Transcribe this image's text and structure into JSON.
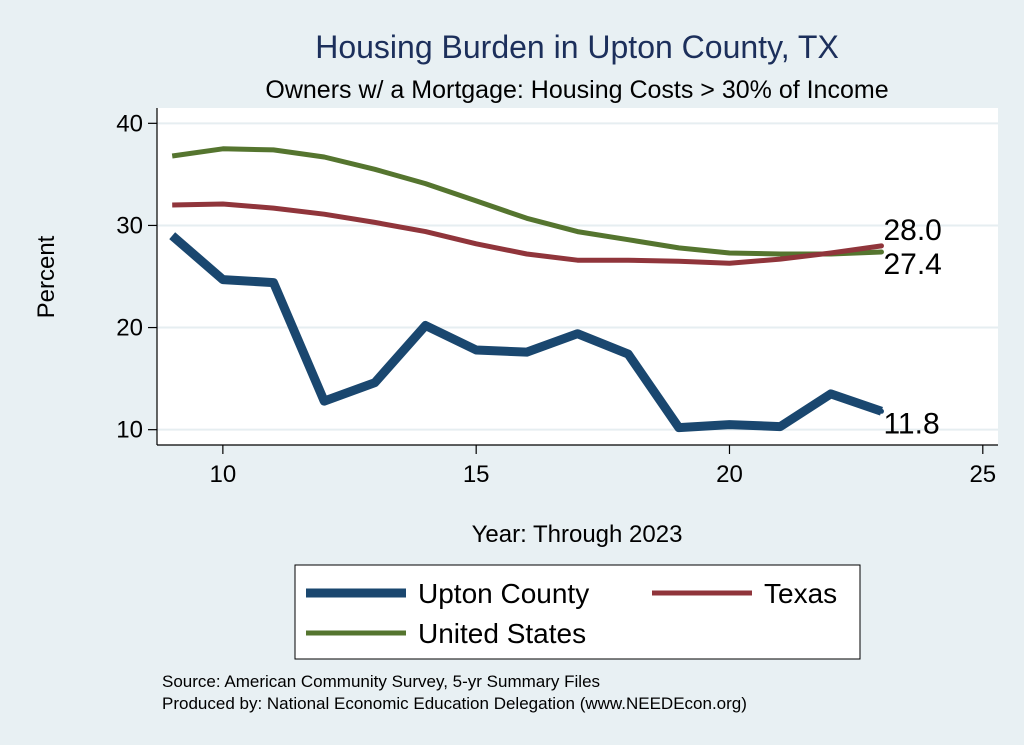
{
  "chart_data": {
    "type": "line",
    "title": "Housing Burden in Upton County, TX",
    "subtitle": "Owners w/ a Mortgage: Housing Costs > 30% of Income",
    "xlabel": "Year: Through 2023",
    "ylabel": "Percent",
    "xlim": [
      8.7,
      25.3
    ],
    "ylim": [
      8.5,
      41.5
    ],
    "xticks": [
      10,
      15,
      20,
      25
    ],
    "yticks": [
      10,
      20,
      30,
      40
    ],
    "grid": true,
    "legend_position": "bottom",
    "x": [
      9,
      10,
      11,
      12,
      13,
      14,
      15,
      16,
      17,
      18,
      19,
      20,
      21,
      22,
      23
    ],
    "series": [
      {
        "name": "Upton County",
        "color": "#1a476f",
        "values": [
          29.0,
          24.7,
          24.4,
          12.8,
          14.6,
          20.2,
          17.8,
          17.6,
          19.4,
          17.4,
          10.2,
          10.5,
          10.3,
          13.5,
          11.8
        ],
        "end_label": "11.8"
      },
      {
        "name": "Texas",
        "color": "#90353b",
        "values": [
          32.0,
          32.1,
          31.7,
          31.1,
          30.3,
          29.4,
          28.2,
          27.2,
          26.6,
          26.6,
          26.5,
          26.3,
          26.7,
          27.3,
          28.0
        ],
        "end_label": "28.0"
      },
      {
        "name": "United States",
        "color": "#55752f",
        "values": [
          36.8,
          37.5,
          37.4,
          36.7,
          35.5,
          34.1,
          32.4,
          30.7,
          29.4,
          28.6,
          27.8,
          27.3,
          27.2,
          27.2,
          27.4
        ],
        "end_label": "27.4"
      }
    ]
  },
  "source": {
    "line1": "Source: American Community Survey, 5-yr Summary Files",
    "line2": "Produced by: National Economic Education Delegation (www.NEEDEcon.org)"
  }
}
